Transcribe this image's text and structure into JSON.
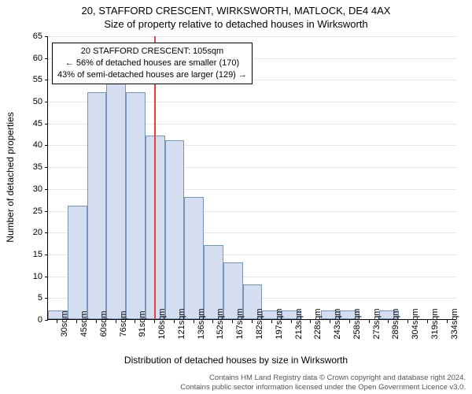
{
  "header": {
    "title_main": "20, STAFFORD CRESCENT, WIRKSWORTH, MATLOCK, DE4 4AX",
    "title_sub": "Size of property relative to detached houses in Wirksworth"
  },
  "chart": {
    "type": "histogram",
    "background_color": "#ffffff",
    "grid_color": "#e6e6e6",
    "axis_color": "#000000",
    "bar_fill": "#d4def0",
    "bar_border": "#7a93b8",
    "reference_line_color": "#e04040",
    "reference_value": 105,
    "y_axis": {
      "label": "Number of detached properties",
      "min": 0,
      "max": 65,
      "tick_step": 5,
      "ticks": [
        0,
        5,
        10,
        15,
        20,
        25,
        30,
        35,
        40,
        45,
        50,
        55,
        60,
        65
      ]
    },
    "x_axis": {
      "label": "Distribution of detached houses by size in Wirksworth",
      "categories": [
        "30sqm",
        "45sqm",
        "60sqm",
        "76sqm",
        "91sqm",
        "106sqm",
        "121sqm",
        "136sqm",
        "152sqm",
        "167sqm",
        "182sqm",
        "197sqm",
        "213sqm",
        "228sqm",
        "243sqm",
        "258sqm",
        "273sqm",
        "289sqm",
        "304sqm",
        "319sqm",
        "334sqm"
      ]
    },
    "values": [
      2,
      26,
      52,
      54,
      52,
      42,
      41,
      28,
      17,
      13,
      8,
      2,
      2,
      0,
      2,
      2,
      0,
      2,
      0,
      0,
      0
    ],
    "bar_width_ratio": 1.0
  },
  "annotation": {
    "line1": "20 STAFFORD CRESCENT: 105sqm",
    "line2": "← 56% of detached houses are smaller (170)",
    "line3": "43% of semi-detached houses are larger (129) →"
  },
  "footer": {
    "line1": "Contains HM Land Registry data © Crown copyright and database right 2024.",
    "line2": "Contains public sector information licensed under the Open Government Licence v3.0."
  },
  "typography": {
    "title_fontsize": 13,
    "axis_label_fontsize": 12,
    "tick_fontsize": 11,
    "annotation_fontsize": 11,
    "footer_fontsize": 9.5
  }
}
